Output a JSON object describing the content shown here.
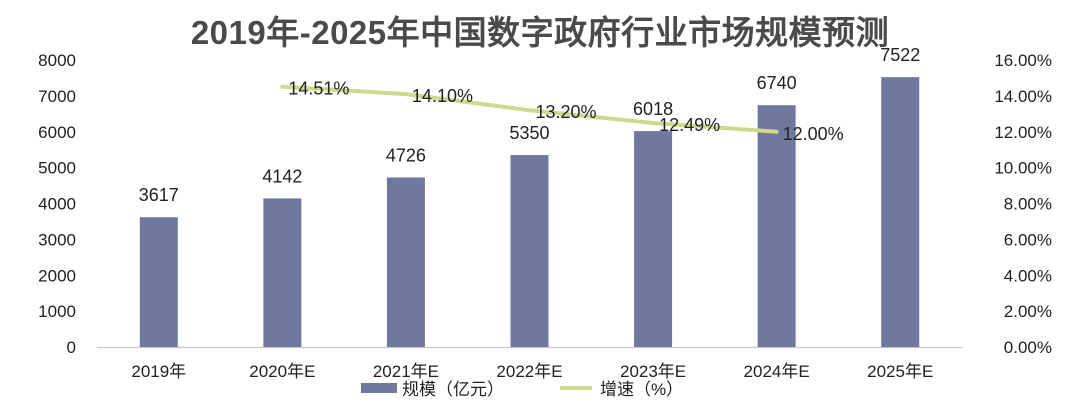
{
  "chart_data": {
    "type": "bar+line",
    "title": "2019年-2025年中国数字政府行业市场规模预测",
    "categories": [
      "2019年",
      "2020年E",
      "2021年E",
      "2022年E",
      "2023年E",
      "2024年E",
      "2025年E"
    ],
    "bar_series": {
      "name": "规模（亿元）",
      "values": [
        3617,
        4142,
        4726,
        5350,
        6018,
        6740,
        7522
      ],
      "labels": [
        "3617",
        "4142",
        "4726",
        "5350",
        "6018",
        "6740",
        "7522"
      ],
      "color": "#6f789f"
    },
    "line_series": {
      "name": "增速（%）",
      "categories": [
        "2020年E",
        "2021年E",
        "2022年E",
        "2023年E",
        "2024年E"
      ],
      "values": [
        14.51,
        14.1,
        13.2,
        12.49,
        12.0
      ],
      "labels": [
        "14.51%",
        "14.10%",
        "13.20%",
        "12.49%",
        "12.00%"
      ],
      "color": "#cfd98d"
    },
    "y_left": {
      "range": [
        0,
        8000
      ],
      "ticks": [
        "0",
        "1000",
        "2000",
        "3000",
        "4000",
        "5000",
        "6000",
        "7000",
        "8000"
      ]
    },
    "y_right": {
      "range": [
        0,
        16
      ],
      "ticks": [
        "0.00%",
        "2.00%",
        "4.00%",
        "6.00%",
        "8.00%",
        "10.00%",
        "12.00%",
        "14.00%",
        "16.00%"
      ]
    },
    "legend_position": "bottom",
    "grid": false
  }
}
